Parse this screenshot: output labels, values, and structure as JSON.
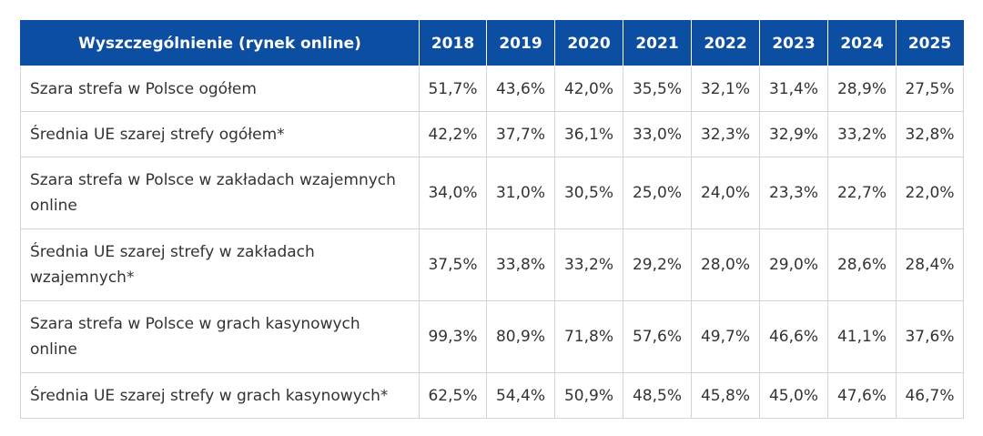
{
  "table": {
    "header": {
      "label": "Wyszczególnienie (rynek online)",
      "years": [
        "2018",
        "2019",
        "2020",
        "2021",
        "2022",
        "2023",
        "2024",
        "2025"
      ]
    },
    "rows": [
      {
        "label": "Szara strefa w Polsce ogółem",
        "values": [
          "51,7%",
          "43,6%",
          "42,0%",
          "35,5%",
          "32,1%",
          "31,4%",
          "28,9%",
          "27,5%"
        ]
      },
      {
        "label": "Średnia UE szarej strefy ogółem*",
        "values": [
          "42,2%",
          "37,7%",
          "36,1%",
          "33,0%",
          "32,3%",
          "32,9%",
          "33,2%",
          "32,8%"
        ]
      },
      {
        "label": "Szara strefa w Polsce w zakładach wzajemnych online",
        "values": [
          "34,0%",
          "31,0%",
          "30,5%",
          "25,0%",
          "24,0%",
          "23,3%",
          "22,7%",
          "22,0%"
        ]
      },
      {
        "label": "Średnia UE szarej strefy w zakładach wzajemnych*",
        "values": [
          "37,5%",
          "33,8%",
          "33,2%",
          "29,2%",
          "28,0%",
          "29,0%",
          "28,6%",
          "28,4%"
        ]
      },
      {
        "label": "Szara strefa w Polsce w grach kasynowych online",
        "values": [
          "99,3%",
          "80,9%",
          "71,8%",
          "57,6%",
          "49,7%",
          "46,6%",
          "41,1%",
          "37,6%"
        ]
      },
      {
        "label": "Średnia UE szarej strefy w grach kasynowych*",
        "values": [
          "62,5%",
          "54,4%",
          "50,9%",
          "48,5%",
          "45,8%",
          "45,0%",
          "47,6%",
          "46,7%"
        ]
      }
    ]
  },
  "colors": {
    "header_background": "#0b4ea2",
    "header_text": "#ffffff",
    "body_text": "#333333",
    "grid_border": "#d5d5d5"
  }
}
